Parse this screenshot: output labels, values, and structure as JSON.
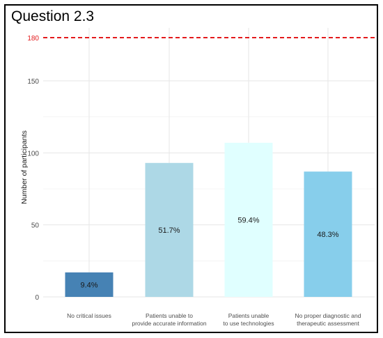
{
  "figure": {
    "title": "Question 2.3"
  },
  "chart_data": {
    "type": "bar",
    "ylabel": "Number of participants",
    "xlabel": "",
    "ylim": [
      0,
      180
    ],
    "yticks": [
      0,
      50,
      100,
      150
    ],
    "grid": true,
    "reference_line": {
      "value": 180,
      "label": "180",
      "color": "#e31a1c",
      "style": "dashed"
    },
    "categories": [
      [
        "No critical issues"
      ],
      [
        "Patients unable to",
        "provide accurate information"
      ],
      [
        "Patients unable",
        "to use technologies"
      ],
      [
        "No proper diagnostic and",
        "therapeutic assessment"
      ]
    ],
    "values": [
      17,
      93,
      107,
      87
    ],
    "data_labels": [
      "9.4%",
      "51.7%",
      "59.4%",
      "48.3%"
    ],
    "colors": [
      "#4682b4",
      "#add8e6",
      "#e0ffff",
      "#87ceeb"
    ]
  }
}
